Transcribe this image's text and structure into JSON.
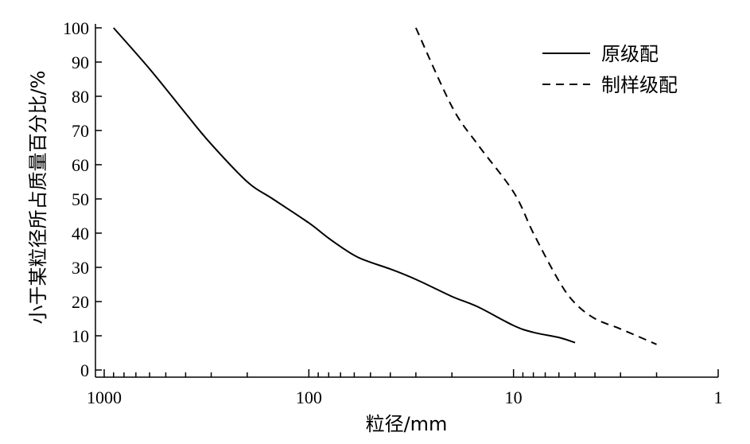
{
  "chart_data": {
    "type": "line",
    "xlabel": "粒径/mm",
    "ylabel": "小于某粒径所占质量百分比/%",
    "xscale": "log",
    "x_reversed": true,
    "xlim": [
      1000,
      1
    ],
    "ylim": [
      0,
      100
    ],
    "xticks": [
      1000,
      100,
      10,
      1
    ],
    "xtick_labels": [
      "1000",
      "100",
      "10",
      "1"
    ],
    "yticks": [
      0,
      10,
      20,
      30,
      40,
      50,
      60,
      70,
      80,
      90,
      100
    ],
    "ytick_labels": [
      "0",
      "10",
      "20",
      "30",
      "40",
      "50",
      "60",
      "70",
      "80",
      "90",
      "100"
    ],
    "grid": false,
    "legend_position": "top-right",
    "series": [
      {
        "name": "原级配",
        "line_style": "solid",
        "color": "#000000",
        "x": [
          900,
          600,
          400,
          300,
          200,
          150,
          100,
          80,
          60,
          50,
          40,
          30,
          20,
          15,
          10,
          8,
          6,
          5
        ],
        "y": [
          100,
          88,
          75,
          66,
          55,
          50,
          43,
          38.5,
          33.5,
          31.5,
          29.5,
          26.5,
          21.5,
          18.5,
          13,
          11,
          9.5,
          8
        ]
      },
      {
        "name": "制样级配",
        "line_style": "dashed",
        "color": "#000000",
        "x": [
          30,
          20,
          15,
          10,
          8,
          6,
          5,
          4,
          3,
          2
        ],
        "y": [
          100,
          77,
          66,
          52,
          40,
          26,
          19.5,
          15,
          12,
          7.5
        ]
      }
    ]
  }
}
